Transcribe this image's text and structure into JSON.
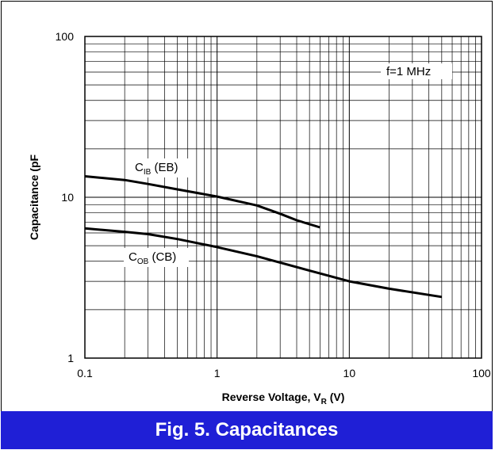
{
  "caption": "Fig. 5.  Capacitances",
  "colors": {
    "caption_bg": "#1f1fd6",
    "caption_text": "#ffffff",
    "curve": "#000000"
  },
  "chart_data": {
    "type": "line",
    "title": "",
    "xlabel": "Reverse Voltage, V",
    "xlabel_sub": "R",
    "xlabel_unit": " (V)",
    "ylabel": "Capacitance (pF",
    "xscale": "log",
    "yscale": "log",
    "xlim": [
      0.1,
      100
    ],
    "ylim": [
      1,
      100
    ],
    "grid": true,
    "x_tick_labels": [
      "0.1",
      "1",
      "10",
      "100"
    ],
    "y_tick_labels": [
      "1",
      "10",
      "100"
    ],
    "annotation": "f=1 MHz",
    "series": [
      {
        "label_main": "C",
        "label_sub": "IB",
        "label_rest": " (EB)",
        "x": [
          0.1,
          0.2,
          0.3,
          0.5,
          1,
          2,
          3,
          4,
          6
        ],
        "y": [
          13.5,
          12.8,
          12.1,
          11.2,
          10.1,
          8.9,
          7.9,
          7.2,
          6.5
        ]
      },
      {
        "label_main": "C",
        "label_sub": "OB",
        "label_rest": " (CB)",
        "x": [
          0.1,
          0.2,
          0.3,
          0.5,
          1,
          2,
          5,
          10,
          20,
          50
        ],
        "y": [
          6.4,
          6.1,
          5.9,
          5.5,
          4.9,
          4.3,
          3.5,
          3.0,
          2.7,
          2.4
        ]
      }
    ]
  }
}
